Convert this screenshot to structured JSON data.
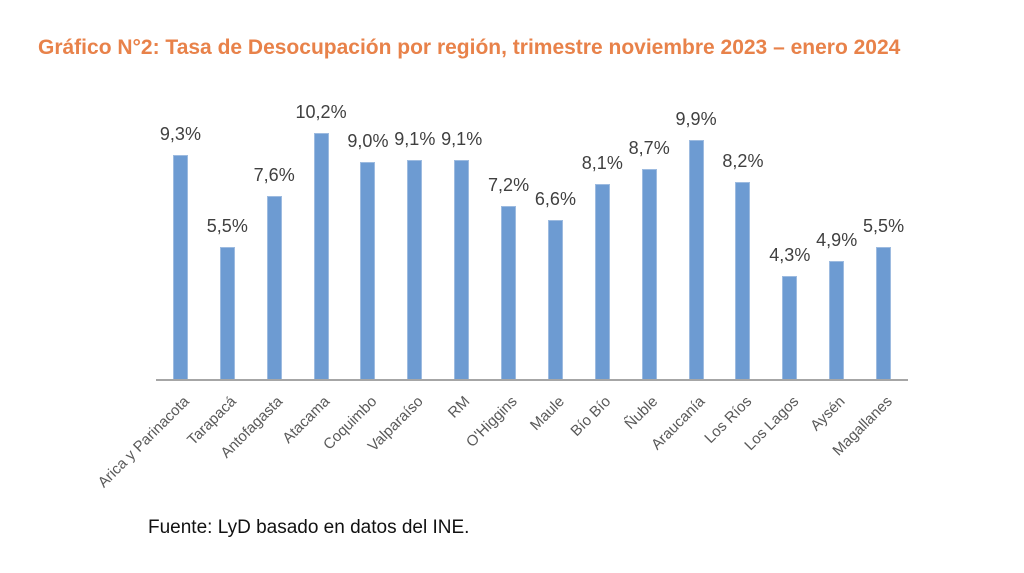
{
  "page": {
    "title": "Gráfico N°2: Tasa de Desocupación por región, trimestre noviembre 2023 – enero 2024",
    "source_note": "Fuente: LyD basado en datos del INE."
  },
  "colors": {
    "title": "#E8824A",
    "bar": "#6D9BD2",
    "bar_border": "#9DBBE0",
    "axis_line": "#A6A6A6",
    "data_label": "#404040",
    "tick_label": "#595959",
    "source": "#111111"
  },
  "chart_data": {
    "type": "bar",
    "title": "Tasa de Desocupación por región, trimestre noviembre 2023 – enero 2024",
    "categories": [
      "Arica y Parinacota",
      "Tarapacá",
      "Antofagasta",
      "Atacama",
      "Coquimbo",
      "Valparaíso",
      "RM",
      "O'Higgins",
      "Maule",
      "Bío Bío",
      "Ñuble",
      "Araucanía",
      "Los Ríos",
      "Los Lagos",
      "Aysén",
      "Magallanes"
    ],
    "values": [
      9.3,
      5.5,
      7.6,
      10.2,
      9.0,
      9.1,
      9.1,
      7.2,
      6.6,
      8.1,
      8.7,
      9.9,
      8.2,
      4.3,
      4.9,
      5.5
    ],
    "value_labels": [
      "9,3%",
      "5,5%",
      "7,6%",
      "10,2%",
      "9,0%",
      "9,1%",
      "9,1%",
      "7,2%",
      "6,6%",
      "8,1%",
      "8,7%",
      "9,9%",
      "8,2%",
      "4,3%",
      "4,9%",
      "5,5%"
    ],
    "unit": "percent",
    "ylim": [
      0,
      10.2
    ],
    "xlabel": "",
    "ylabel": "",
    "grid": false,
    "legend": false,
    "tick_label_rotation_deg": 45,
    "data_labels_shown": true
  }
}
